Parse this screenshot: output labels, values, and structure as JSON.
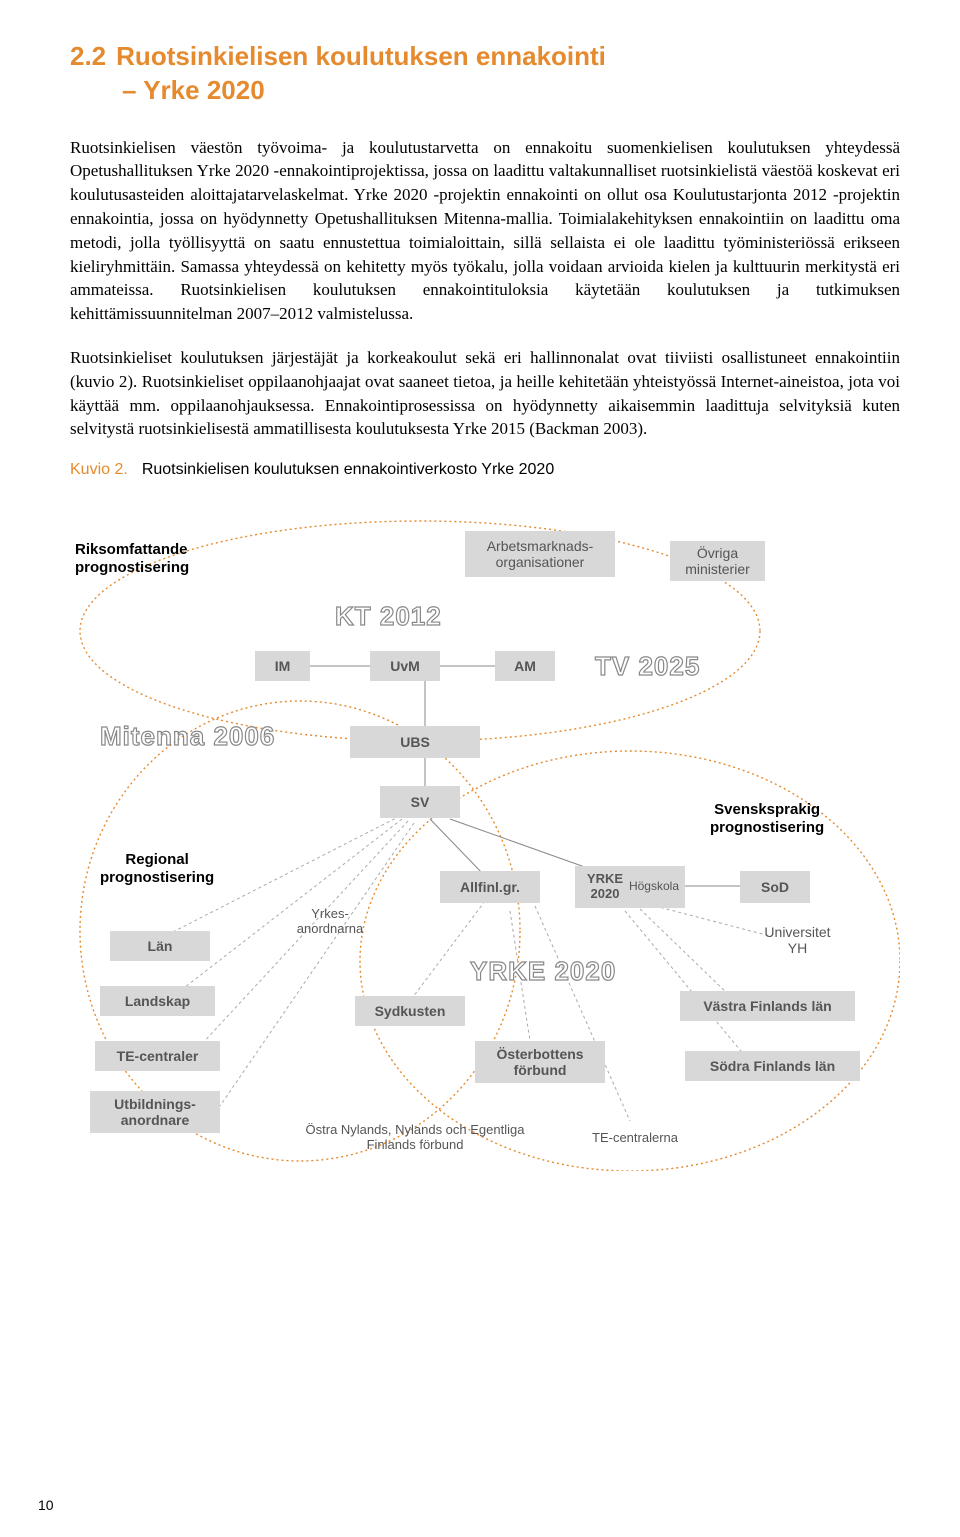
{
  "heading": {
    "number": "2.2",
    "line1": "Ruotsinkielisen koulutuksen ennakointi",
    "line2": "– Yrke 2020",
    "color": "#e58a2e"
  },
  "paragraphs": {
    "p1": "Ruotsinkielisen väestön työvoima- ja koulutustarvetta on ennakoitu suomenkielisen koulutuksen yhteydessä Opetushallituksen Yrke 2020 -ennakointiprojektissa, jossa on laadittu valtakunnalliset ruotsinkielistä väestöä koskevat eri koulutusasteiden aloittajatarvelaskelmat. Yrke 2020 -projektin ennakointi on ollut osa Koulutustarjonta 2012 -projektin ennakointia, jossa on hyödynnetty Opetushallituksen Mitenna-mallia. Toimialakehityksen ennakointiin on laadittu oma metodi, jolla työllisyyttä on saatu ennustettua toimialoittain, sillä sellaista ei ole laadittu työministeriössä erikseen kieliryhmittäin. Samassa yhteydessä on kehitetty myös työkalu, jolla voidaan arvioida kielen ja kulttuurin merkitystä eri ammateissa. Ruotsinkielisen koulutuksen ennakointituloksia käytetään koulutuksen ja tutkimuksen kehittämissuunnitelman 2007–2012 valmistelussa.",
    "p2": "Ruotsinkieliset koulutuksen järjestäjät ja korkeakoulut sekä eri hallinnonalat ovat tiiviisti osallistuneet ennakointiin (kuvio 2). Ruotsinkieliset oppilaanohjaajat ovat saaneet tietoa, ja heille kehitetään yhteistyössä Internet-aineistoa, jota voi käyttää mm. oppilaanohjauksessa. Ennakointiprosessissa on hyödynnetty aikaisemmin laadittuja selvityksiä kuten selvitystä ruotsinkielisestä ammatillisesta koulutuksesta Yrke 2015 (Backman 2003)."
  },
  "caption": {
    "label": "Kuvio 2.",
    "text": "Ruotsinkielisen koulutuksen ennakointiverkosto Yrke 2020"
  },
  "diagram": {
    "background_color": "#ffffff",
    "box_bg": "#d8d8d8",
    "box_text_color": "#555555",
    "ellipse_color": "#e58a2e",
    "line_color": "#888888",
    "labels": {
      "riks": "Riksomfattande prognostisering",
      "regional": "Regional prognostisering",
      "svensk": "Svensksprakig prognostisering"
    },
    "outline": {
      "kt2012": "KT 2012",
      "mitenna": "Mitenna 2006",
      "tv2025": "TV 2025",
      "yrke2020": "YRKE 2020"
    },
    "boxes": {
      "arbets": "Arbetsmarknads-\norganisationer",
      "ovriga": "Övriga ministerier",
      "im": "IM",
      "uvm": "UvM",
      "am": "AM",
      "ubs": "UBS",
      "sv": "SV",
      "allfinl": "Allfinl.gr.",
      "yrkehog": "YRKE 2020 Högskola",
      "sod": "SoD",
      "univ": "Universitet YH",
      "yrkes": "Yrkes-\nanordnarna",
      "lan": "Län",
      "landskap": "Landskap",
      "te": "TE-centraler",
      "utbild": "Utbildnings-\nanordnare",
      "sydkusten": "Sydkusten",
      "osterb": "Österbottens förbund",
      "vastra": "Västra Finlands län",
      "sodra": "Södra Finlands län",
      "ostra": "Östra Nylands, Nylands och Egentliga Finlands förbund",
      "tecentral": "TE-centralerna"
    }
  },
  "page_number": "10"
}
